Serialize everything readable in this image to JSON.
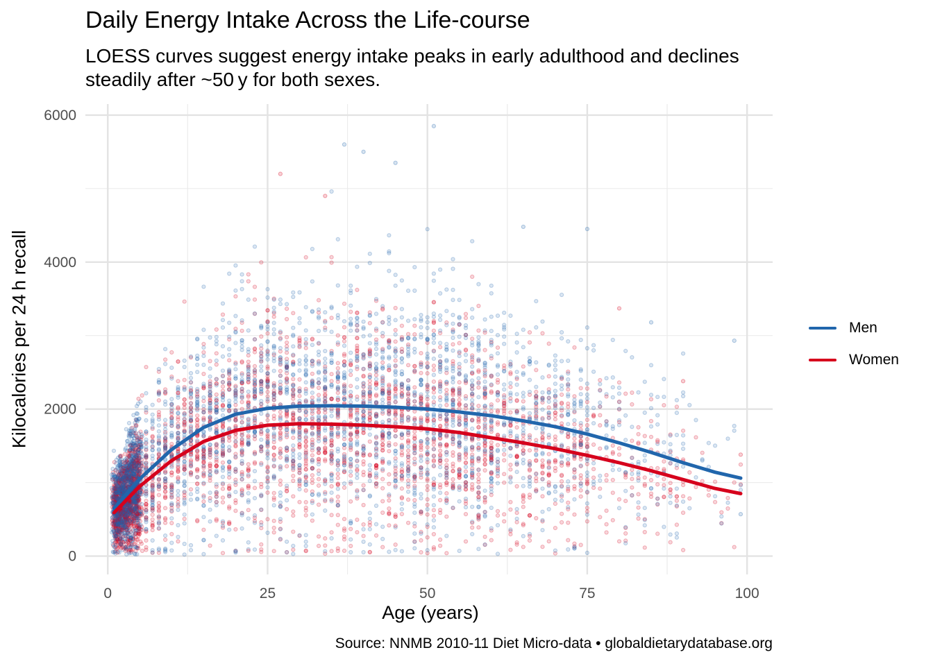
{
  "chart_data": {
    "type": "scatter",
    "title": "Daily Energy Intake Across the Life‑course",
    "subtitle": "LOESS curves suggest energy intake peaks in early adulthood and declines steadily after ~50 y for both sexes.",
    "caption": "Source: NNMB 2010‑11 Diet Micro‑data • globaldietarydatabase.org",
    "xlabel": "Age (years)",
    "ylabel": "Kilocalories per 24 h recall",
    "xlim": [
      -3.5,
      104
    ],
    "ylim": [
      -250,
      6150
    ],
    "x_ticks": [
      0,
      25,
      50,
      75,
      100
    ],
    "x_tick_labels": [
      "0",
      "25",
      "50",
      "75",
      "100"
    ],
    "y_ticks": [
      0,
      2000,
      4000,
      6000
    ],
    "y_tick_labels": [
      "0",
      "2000",
      "4000",
      "6000"
    ],
    "grid": true,
    "legend_position": "right",
    "series": [
      {
        "name": "Men",
        "color": "#2166ac",
        "loess_x": [
          1,
          5,
          10,
          15,
          20,
          25,
          30,
          35,
          40,
          45,
          50,
          55,
          60,
          65,
          70,
          75,
          80,
          85,
          90,
          95,
          99
        ],
        "loess_y": [
          650,
          1050,
          1450,
          1750,
          1930,
          2010,
          2040,
          2045,
          2040,
          2025,
          2000,
          1960,
          1910,
          1840,
          1760,
          1660,
          1540,
          1410,
          1270,
          1140,
          1060
        ]
      },
      {
        "name": "Women",
        "color": "#d6001c",
        "loess_x": [
          1,
          5,
          10,
          15,
          20,
          25,
          30,
          35,
          40,
          45,
          50,
          55,
          60,
          65,
          70,
          75,
          80,
          85,
          90,
          95,
          99
        ],
        "loess_y": [
          590,
          950,
          1300,
          1560,
          1710,
          1780,
          1800,
          1795,
          1780,
          1760,
          1730,
          1680,
          1610,
          1540,
          1460,
          1370,
          1270,
          1160,
          1040,
          920,
          850
        ]
      }
    ],
    "scatter_note_points": {
      "Men": [
        [
          51,
          5850
        ],
        [
          37,
          5600
        ],
        [
          40,
          5500
        ],
        [
          45,
          5350
        ],
        [
          65,
          4480
        ],
        [
          75,
          4450
        ],
        [
          85,
          3180
        ],
        [
          98,
          2930
        ],
        [
          99,
          570
        ]
      ],
      "Women": [
        [
          27,
          5200
        ],
        [
          34,
          4900
        ],
        [
          80,
          3370
        ],
        [
          90,
          2380
        ],
        [
          99,
          1380
        ]
      ]
    }
  }
}
